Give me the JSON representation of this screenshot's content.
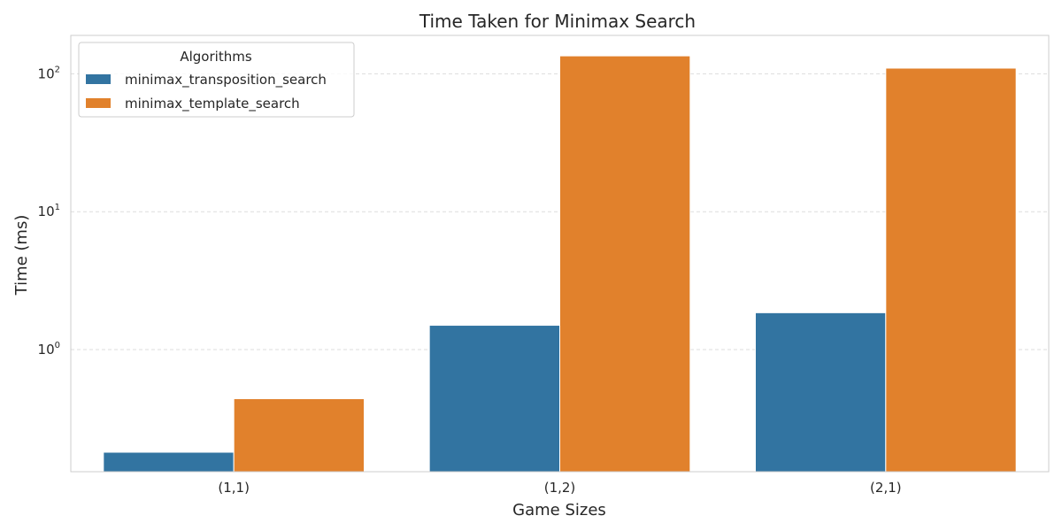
{
  "chart_data": {
    "type": "bar",
    "title": "Time Taken for Minimax Search",
    "xlabel": "Game Sizes",
    "ylabel": "Time (ms)",
    "yscale": "log",
    "ylim": [
      0.13,
      190
    ],
    "yticks": [
      {
        "value": 1,
        "base": "10",
        "exp": "0"
      },
      {
        "value": 10,
        "base": "10",
        "exp": "1"
      },
      {
        "value": 100,
        "base": "10",
        "exp": "2"
      }
    ],
    "grid": "y-dashed",
    "categories": [
      "(1,1)",
      "(1,2)",
      "(2,1)"
    ],
    "series": [
      {
        "name": "minimax_transposition_search",
        "color": "#3274a1",
        "values": [
          0.18,
          1.5,
          1.85
        ]
      },
      {
        "name": "minimax_template_search",
        "color": "#e1812c",
        "values": [
          0.44,
          135,
          110
        ]
      }
    ],
    "legend": {
      "title": "Algorithms",
      "position": "top-left"
    }
  }
}
